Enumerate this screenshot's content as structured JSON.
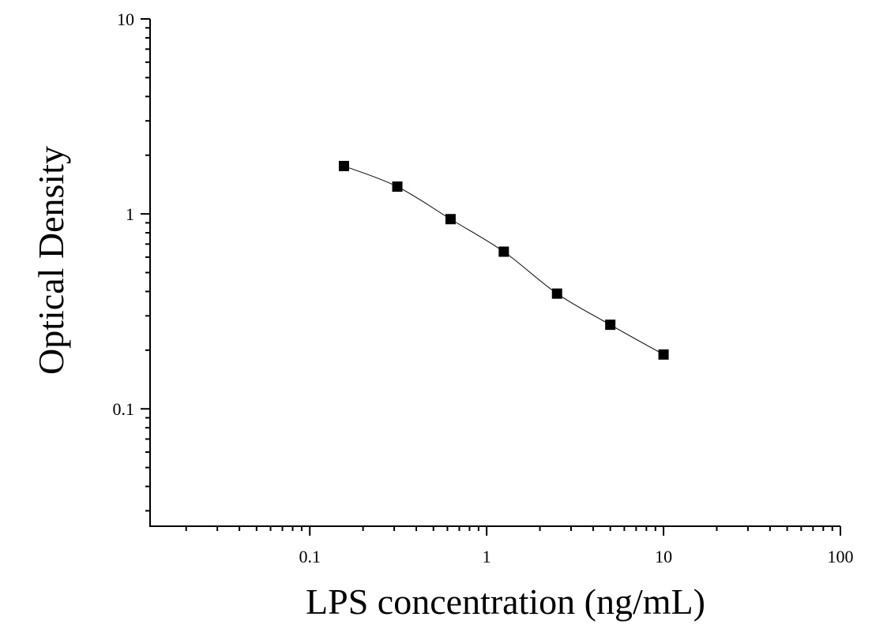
{
  "chart_data": {
    "type": "scatter",
    "title": "",
    "xlabel": "LPS concentration (ng/mL)",
    "ylabel": "Optical Density",
    "xscale": "log",
    "yscale": "log",
    "xlim": [
      0.0125,
      100
    ],
    "ylim": [
      0.025,
      10
    ],
    "x_ticks": [
      {
        "value": 0.1,
        "label": "0.1"
      },
      {
        "value": 1,
        "label": "1"
      },
      {
        "value": 10,
        "label": "10"
      },
      {
        "value": 100,
        "label": "100"
      }
    ],
    "y_ticks": [
      {
        "value": 0.1,
        "label": "0.1"
      },
      {
        "value": 1,
        "label": "1"
      },
      {
        "value": 10,
        "label": "10"
      }
    ],
    "grid": false,
    "legend": "none",
    "marker": "square",
    "series": [
      {
        "x": [
          0.156,
          0.3125,
          0.625,
          1.25,
          2.5,
          5,
          10
        ],
        "y": [
          1.76,
          1.38,
          0.94,
          0.64,
          0.39,
          0.27,
          0.19
        ],
        "fit_curve": true
      }
    ]
  }
}
